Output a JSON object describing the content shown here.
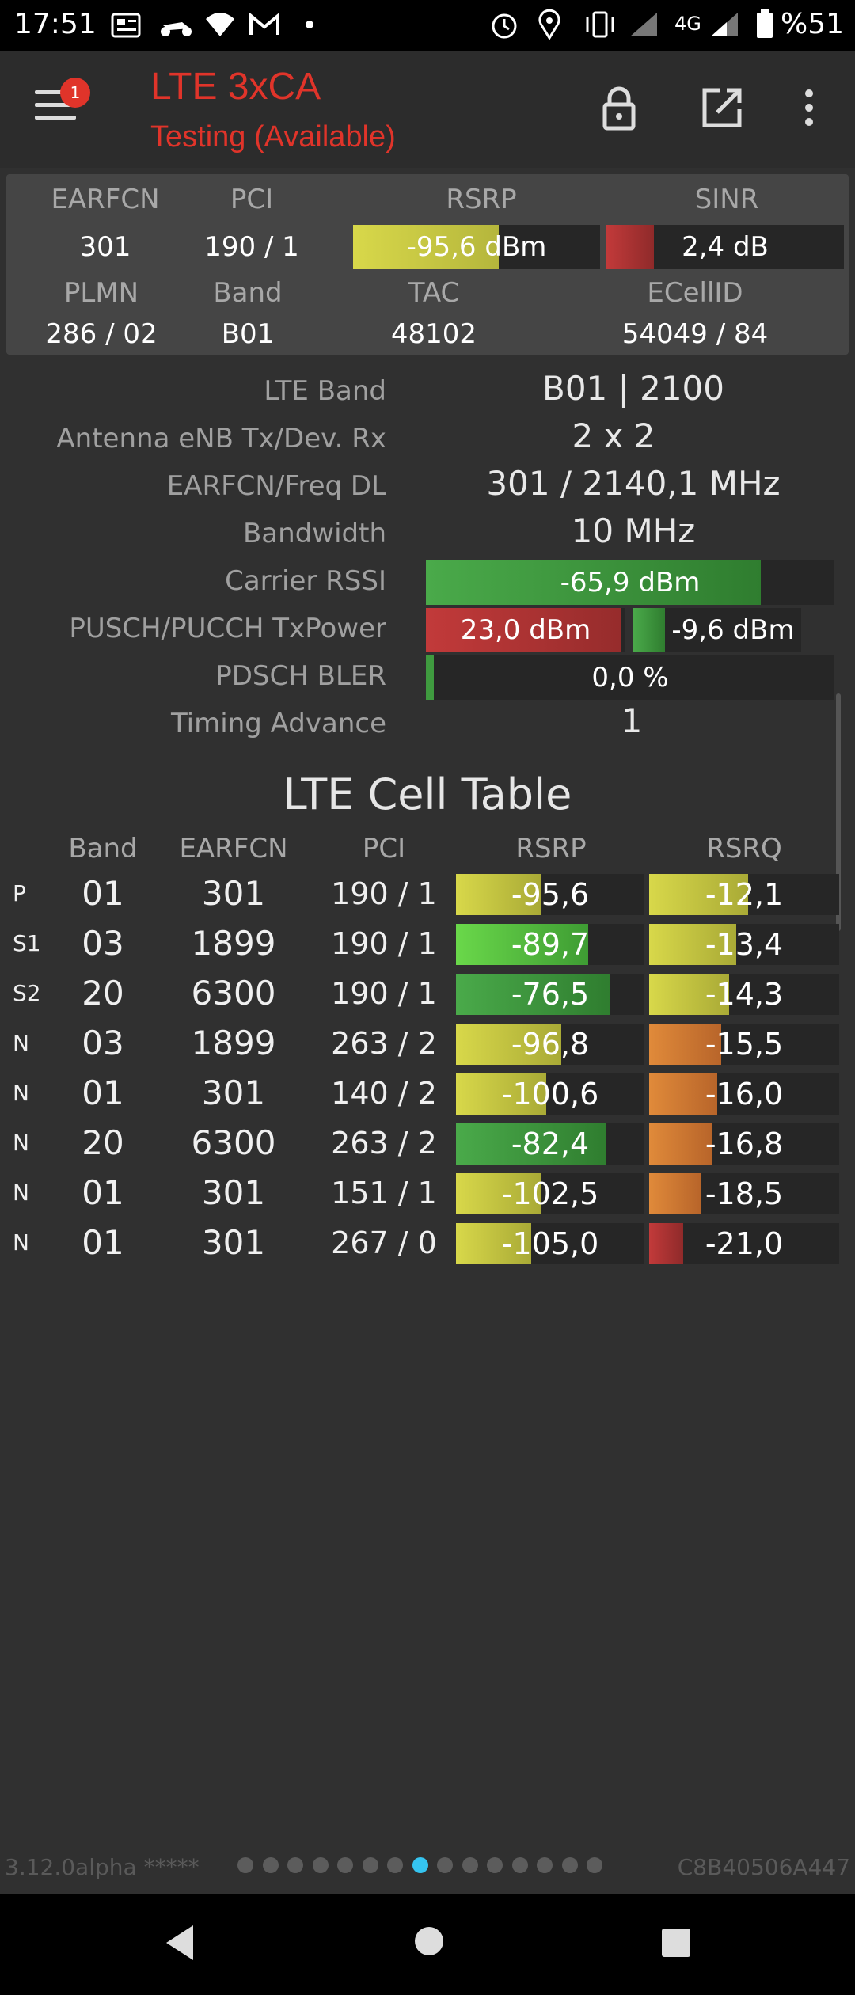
{
  "status_bar": {
    "time": "17:51",
    "network": "4G",
    "battery": "%51",
    "icons": [
      "news-icon",
      "scooter-icon",
      "wifi-icon",
      "gmail-icon",
      "dot-icon",
      "alarm-icon",
      "location-icon",
      "vibrate-icon",
      "signal-icon",
      "battery-icon"
    ]
  },
  "app_bar": {
    "title": "LTE 3xCA",
    "subtitle": "Testing (Available)",
    "notification_badge": "1",
    "icons": [
      "menu-icon",
      "lock-icon",
      "open-external-icon",
      "more-vert-icon"
    ]
  },
  "summary": {
    "headers": {
      "earfcn": "EARFCN",
      "pci": "PCI",
      "rsrp": "RSRP",
      "sinr": "SINR",
      "plmn": "PLMN",
      "band": "Band",
      "tac": "TAC",
      "ecellid": "ECellID"
    },
    "earfcn": "301",
    "pci": "190 / 1",
    "rsrp": "-95,6 dBm",
    "rsrp_fill": 0.59,
    "sinr": "2,4 dB",
    "sinr_fill": 0.2,
    "plmn": "286 / 02",
    "band": "B01",
    "tac": "48102",
    "ecellid": "54049 / 84"
  },
  "details": {
    "lte_band_label": "LTE Band",
    "lte_band": "B01 | 2100",
    "antenna_label": "Antenna eNB Tx/Dev. Rx",
    "antenna": "2 x 2",
    "earfcn_freq_label": "EARFCN/Freq DL",
    "earfcn_freq": "301 / 2140,1 MHz",
    "bandwidth_label": "Bandwidth",
    "bandwidth": "10 MHz",
    "rssi_label": "Carrier RSSI",
    "rssi": "-65,9 dBm",
    "rssi_fill": 0.82,
    "txpower_label": "PUSCH/PUCCH TxPower",
    "pusch": "23,0 dBm",
    "pusch_fill": 0.98,
    "pucch": "-9,6 dBm",
    "pucch_fill": 0.19,
    "bler_label": "PDSCH BLER",
    "bler": "0,0 %",
    "bler_fill": 0.02,
    "ta_label": "Timing Advance",
    "ta": "1"
  },
  "cell_table": {
    "title": "LTE Cell Table",
    "headers": [
      "Band",
      "EARFCN",
      "PCI",
      "RSRP",
      "RSRQ"
    ],
    "rows": [
      {
        "type": "P",
        "band": "01",
        "earfcn": "301",
        "pci": "190 / 1",
        "rsrp": "-95,6",
        "rsrp_fill": 0.45,
        "rsrq": "-12,1",
        "rsrq_fill": 0.52
      },
      {
        "type": "S1",
        "band": "03",
        "earfcn": "1899",
        "pci": "190 / 1",
        "rsrp": "-89,7",
        "rsrp_fill": 0.7,
        "rsrq": "-13,4",
        "rsrq_fill": 0.46
      },
      {
        "type": "S2",
        "band": "20",
        "earfcn": "6300",
        "pci": "190 / 1",
        "rsrp": "-76,5",
        "rsrp_fill": 0.82,
        "rsrq": "-14,3",
        "rsrq_fill": 0.42
      },
      {
        "type": "N",
        "band": "03",
        "earfcn": "1899",
        "pci": "263 / 2",
        "rsrp": "-96,8",
        "rsrp_fill": 0.56,
        "rsrq": "-15,5",
        "rsrq_fill": 0.38
      },
      {
        "type": "N",
        "band": "01",
        "earfcn": "301",
        "pci": "140 / 2",
        "rsrp": "-100,6",
        "rsrp_fill": 0.48,
        "rsrq": "-16,0",
        "rsrq_fill": 0.36
      },
      {
        "type": "N",
        "band": "20",
        "earfcn": "6300",
        "pci": "263 / 2",
        "rsrp": "-82,4",
        "rsrp_fill": 0.8,
        "rsrq": "-16,8",
        "rsrq_fill": 0.33
      },
      {
        "type": "N",
        "band": "01",
        "earfcn": "301",
        "pci": "151 / 1",
        "rsrp": "-102,5",
        "rsrp_fill": 0.45,
        "rsrq": "-18,5",
        "rsrq_fill": 0.27
      },
      {
        "type": "N",
        "band": "01",
        "earfcn": "301",
        "pci": "267 / 0",
        "rsrp": "-105,0",
        "rsrp_fill": 0.4,
        "rsrq": "-21,0",
        "rsrq_fill": 0.18
      }
    ]
  },
  "footer": {
    "version": "3.12.0alpha *****",
    "device_id": "C8B40506A447",
    "page_count": 15,
    "active_page": 8
  },
  "colors": {
    "accent_red": "#e0342a",
    "yellow": "#cfd046",
    "bright_green": "#5fcc45",
    "green": "#3f9a3f",
    "orange": "#d87a30",
    "dark_red": "#b83232",
    "active_dot": "#35c4f0"
  }
}
